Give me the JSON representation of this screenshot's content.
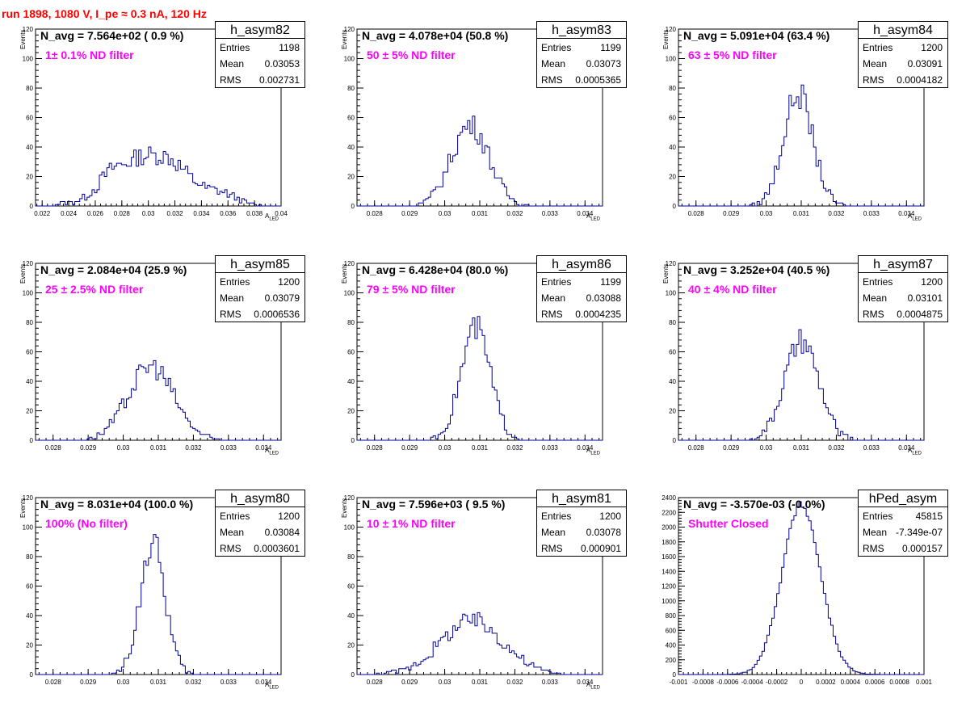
{
  "title": "run 1898,  1080 V, I_pe ≈ 0.3 nA, 120 Hz",
  "chart_data": [
    {
      "type": "bar",
      "hist": "h_asym82",
      "navg": "N_avg = 7.564e+02 ( 0.9 %)",
      "filter": "1± 0.1% ND filter",
      "stats": {
        "entries": "1198",
        "mean": "0.03053",
        "rms": "0.002731"
      },
      "xlim": [
        0.0215,
        0.04
      ],
      "xticks": [
        0.022,
        0.024,
        0.026,
        0.028,
        0.03,
        0.032,
        0.034,
        0.036,
        0.038,
        0.04
      ],
      "ylim": [
        0,
        120
      ],
      "yticks": [
        0,
        20,
        40,
        60,
        80,
        100,
        120
      ],
      "xlabel": "A",
      "xsub": "LED",
      "ylabel": "Events",
      "profile": [
        [
          0.0215,
          0
        ],
        [
          0.0225,
          0
        ],
        [
          0.0235,
          2
        ],
        [
          0.0245,
          3
        ],
        [
          0.025,
          5
        ],
        [
          0.0255,
          8
        ],
        [
          0.026,
          12
        ],
        [
          0.0265,
          18
        ],
        [
          0.027,
          24
        ],
        [
          0.0275,
          27
        ],
        [
          0.028,
          28
        ],
        [
          0.0285,
          30
        ],
        [
          0.029,
          32
        ],
        [
          0.0295,
          34
        ],
        [
          0.03,
          35
        ],
        [
          0.0305,
          34
        ],
        [
          0.031,
          34
        ],
        [
          0.0315,
          33
        ],
        [
          0.032,
          30
        ],
        [
          0.0325,
          26
        ],
        [
          0.033,
          21
        ],
        [
          0.0335,
          17
        ],
        [
          0.034,
          14
        ],
        [
          0.0345,
          12
        ],
        [
          0.035,
          11
        ],
        [
          0.0355,
          10
        ],
        [
          0.036,
          8
        ],
        [
          0.0365,
          6
        ],
        [
          0.037,
          4
        ],
        [
          0.0375,
          2
        ],
        [
          0.038,
          1
        ],
        [
          0.039,
          0
        ]
      ]
    },
    {
      "type": "bar",
      "hist": "h_asym83",
      "navg": "N_avg = 4.078e+04 (50.8 %)",
      "filter": "50 ± 5% ND filter",
      "stats": {
        "entries": "1199",
        "mean": "0.03073",
        "rms": "0.0005365"
      },
      "xlim": [
        0.0275,
        0.0345
      ],
      "xticks": [
        0.028,
        0.029,
        0.03,
        0.031,
        0.032,
        0.033,
        0.034
      ],
      "ylim": [
        0,
        120
      ],
      "yticks": [
        0,
        20,
        40,
        60,
        80,
        100,
        120
      ],
      "xlabel": "A",
      "xsub": "LED",
      "ylabel": "Events",
      "mean": 0.03073,
      "sigma": 0.00054,
      "peak": 55
    },
    {
      "type": "bar",
      "hist": "h_asym84",
      "navg": "N_avg = 5.091e+04 (63.4 %)",
      "filter": "63 ± 5% ND filter",
      "stats": {
        "entries": "1200",
        "mean": "0.03091",
        "rms": "0.0004182"
      },
      "xlim": [
        0.0275,
        0.0345
      ],
      "xticks": [
        0.028,
        0.029,
        0.03,
        0.031,
        0.032,
        0.033,
        0.034
      ],
      "ylim": [
        0,
        120
      ],
      "yticks": [
        0,
        20,
        40,
        60,
        80,
        100,
        120
      ],
      "xlabel": "A",
      "xsub": "LED",
      "ylabel": "Events",
      "mean": 0.03091,
      "sigma": 0.00042,
      "peak": 76
    },
    {
      "type": "bar",
      "hist": "h_asym85",
      "navg": "N_avg = 2.084e+04 (25.9 %)",
      "filter": "25 ± 2.5% ND filter",
      "stats": {
        "entries": "1200",
        "mean": "0.03079",
        "rms": "0.0006536"
      },
      "xlim": [
        0.0275,
        0.0345
      ],
      "xticks": [
        0.028,
        0.029,
        0.03,
        0.031,
        0.032,
        0.033,
        0.034
      ],
      "ylim": [
        0,
        120
      ],
      "yticks": [
        0,
        20,
        40,
        60,
        80,
        100,
        120
      ],
      "xlabel": "A",
      "xsub": "LED",
      "ylabel": "Events",
      "mean": 0.03079,
      "sigma": 0.00065,
      "peak": 50
    },
    {
      "type": "bar",
      "hist": "h_asym86",
      "navg": "N_avg = 6.428e+04 (80.0 %)",
      "filter": "79 ± 5% ND filter",
      "stats": {
        "entries": "1199",
        "mean": "0.03088",
        "rms": "0.0004235"
      },
      "xlim": [
        0.0275,
        0.0345
      ],
      "xticks": [
        0.028,
        0.029,
        0.03,
        0.031,
        0.032,
        0.033,
        0.034
      ],
      "ylim": [
        0,
        120
      ],
      "yticks": [
        0,
        20,
        40,
        60,
        80,
        100,
        120
      ],
      "xlabel": "A",
      "xsub": "LED",
      "ylabel": "Events",
      "mean": 0.03088,
      "sigma": 0.00042,
      "peak": 76
    },
    {
      "type": "bar",
      "hist": "h_asym87",
      "navg": "N_avg = 3.252e+04 (40.5 %)",
      "filter": "40 ± 4% ND filter",
      "stats": {
        "entries": "1200",
        "mean": "0.03101",
        "rms": "0.0004875"
      },
      "xlim": [
        0.0275,
        0.0345
      ],
      "xticks": [
        0.028,
        0.029,
        0.03,
        0.031,
        0.032,
        0.033,
        0.034
      ],
      "ylim": [
        0,
        120
      ],
      "yticks": [
        0,
        20,
        40,
        60,
        80,
        100,
        120
      ],
      "xlabel": "A",
      "xsub": "LED",
      "ylabel": "Events",
      "mean": 0.03101,
      "sigma": 0.00049,
      "peak": 66
    },
    {
      "type": "bar",
      "hist": "h_asym80",
      "navg": "N_avg = 8.031e+04 (100.0 %)",
      "filter": "100% (No filter)",
      "stats": {
        "entries": "1200",
        "mean": "0.03084",
        "rms": "0.0003601"
      },
      "xlim": [
        0.0275,
        0.0345
      ],
      "xticks": [
        0.028,
        0.029,
        0.03,
        0.031,
        0.032,
        0.033,
        0.034
      ],
      "ylim": [
        0,
        120
      ],
      "yticks": [
        0,
        20,
        40,
        60,
        80,
        100,
        120
      ],
      "xlabel": "A",
      "xsub": "LED",
      "ylabel": "Events",
      "mean": 0.03084,
      "sigma": 0.00036,
      "peak": 88
    },
    {
      "type": "bar",
      "hist": "h_asym81",
      "navg": "N_avg = 7.596e+03 ( 9.5 %)",
      "filter": "10 ± 1% ND filter",
      "stats": {
        "entries": "1200",
        "mean": "0.03078",
        "rms": "0.000901"
      },
      "xlim": [
        0.0275,
        0.0345
      ],
      "xticks": [
        0.028,
        0.029,
        0.03,
        0.031,
        0.032,
        0.033,
        0.034
      ],
      "ylim": [
        0,
        120
      ],
      "yticks": [
        0,
        20,
        40,
        60,
        80,
        100,
        120
      ],
      "xlabel": "A",
      "xsub": "LED",
      "ylabel": "Events",
      "mean": 0.03078,
      "sigma": 0.0009,
      "peak": 36
    },
    {
      "type": "bar",
      "hist": "hPed_asym",
      "navg": "N_avg = -3.570e-03 (-0.0%)",
      "filter": "Shutter Closed",
      "stats": {
        "entries": "45815",
        "mean": "-7.349e-07",
        "rms": "0.000157"
      },
      "xlim": [
        -0.001,
        0.001
      ],
      "xticks": [
        -0.001,
        -0.0008,
        -0.0006,
        -0.0004,
        -0.0002,
        0,
        0.0002,
        0.0004,
        0.0006,
        0.0008,
        0.001
      ],
      "ylim": [
        0,
        2400
      ],
      "yticks": [
        0,
        200,
        400,
        600,
        800,
        1000,
        1200,
        1400,
        1600,
        1800,
        2000,
        2200,
        2400
      ],
      "xlabel": "",
      "xsub": "",
      "ylabel": "",
      "mean": 0.0,
      "sigma": 0.000157,
      "peak": 2300
    }
  ]
}
